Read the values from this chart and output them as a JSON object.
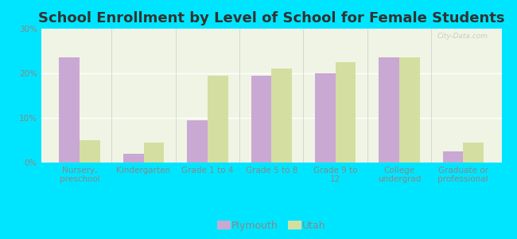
{
  "title": "School Enrollment by Level of School for Female Students",
  "categories": [
    "Nursery,\npreschool",
    "Kindergarten",
    "Grade 1 to 4",
    "Grade 5 to 8",
    "Grade 9 to\n12",
    "College\nundergrad",
    "Graduate or\nprofessional"
  ],
  "plymouth_values": [
    23.5,
    2.0,
    9.5,
    19.5,
    20.0,
    23.5,
    2.5
  ],
  "utah_values": [
    5.0,
    4.5,
    19.5,
    21.0,
    22.5,
    23.5,
    4.5
  ],
  "plymouth_color": "#c9a8d4",
  "utah_color": "#d4dea0",
  "background_color": "#00e5ff",
  "plot_bg_color": "#f0f4e4",
  "ylim": [
    0,
    30
  ],
  "yticks": [
    0,
    10,
    20,
    30
  ],
  "ytick_labels": [
    "0%",
    "10%",
    "20%",
    "30%"
  ],
  "bar_width": 0.32,
  "legend_labels": [
    "Plymouth",
    "Utah"
  ],
  "watermark": "City-Data.com",
  "title_fontsize": 13,
  "tick_fontsize": 7.5,
  "legend_fontsize": 9
}
